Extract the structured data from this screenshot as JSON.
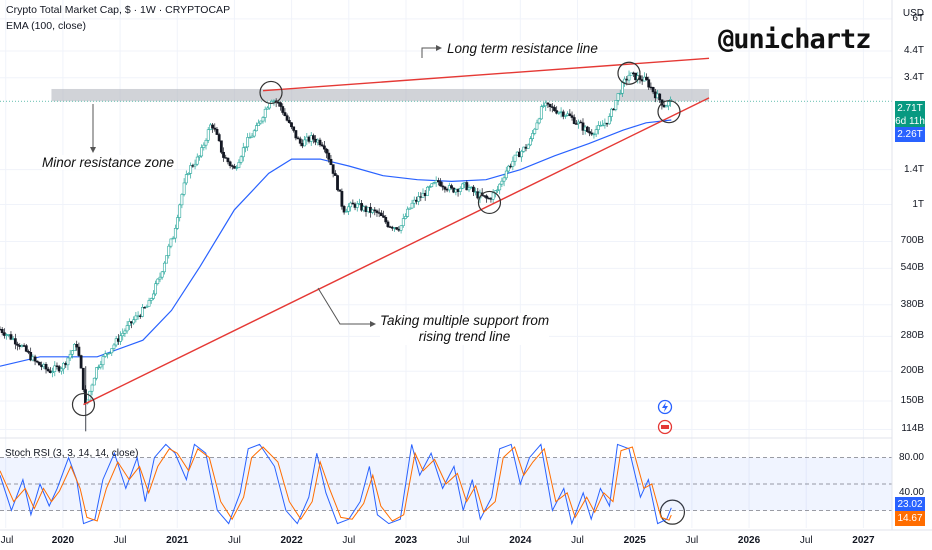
{
  "header": {
    "title": "Crypto Total Market Cap, $ · 1W · CRYPTOCAP",
    "ema_label": "EMA (100, close)",
    "rsi_label": "Stoch RSI (3, 3, 14, 14, close)",
    "currency": "USD",
    "handle": "@unichartz"
  },
  "annotations": {
    "long_term_resistance": "Long term resistance line",
    "minor_resistance": "Minor resistance zone",
    "support_line1": "Taking multiple support from",
    "support_line2": "rising trend line"
  },
  "colors": {
    "up": "#26a69a",
    "down": "#131722",
    "ema": "#2962ff",
    "trendline": "#e53935",
    "rsi_k": "#2962ff",
    "rsi_d": "#ff6d00",
    "badge_price": "#089981",
    "badge_ema": "#2962ff",
    "badge_d": "#ff6d00"
  },
  "badges": {
    "price": "2.71T",
    "countdown": "6d 11h",
    "ema": "2.26T",
    "rsi_k": "23.02",
    "rsi_d": "14.67"
  },
  "chart_data": {
    "type": "candlestick",
    "title": "Crypto Total Market Cap, $ · 1W · CRYPTOCAP",
    "scale": "log",
    "y_ticks": [
      "6T",
      "4.4T",
      "3.4T",
      "1.4T",
      "1T",
      "700B",
      "540B",
      "380B",
      "280B",
      "200B",
      "150B",
      "114B"
    ],
    "y_tick_values": [
      6.0,
      4.4,
      3.4,
      1.4,
      1.0,
      0.7,
      0.54,
      0.38,
      0.28,
      0.2,
      0.15,
      0.114
    ],
    "x_ticks": [
      "Jul",
      "2020",
      "Jul",
      "2021",
      "Jul",
      "2022",
      "Jul",
      "2023",
      "Jul",
      "2024",
      "Jul",
      "2025",
      "Jul",
      "2026",
      "Jul",
      "2027"
    ],
    "x_tick_dates": [
      2019.5,
      2020.0,
      2020.5,
      2021.0,
      2021.5,
      2022.0,
      2022.5,
      2023.0,
      2023.5,
      2024.0,
      2024.5,
      2025.0,
      2025.5,
      2026.0,
      2026.5,
      2027.0
    ],
    "x_range": [
      2019.45,
      2027.25
    ],
    "y_range_T": [
      0.105,
      7.2
    ],
    "price_path": [
      [
        2019.45,
        0.3
      ],
      [
        2019.62,
        0.26
      ],
      [
        2019.75,
        0.22
      ],
      [
        2019.88,
        0.2
      ],
      [
        2020.0,
        0.21
      ],
      [
        2020.12,
        0.26
      ],
      [
        2020.2,
        0.14
      ],
      [
        2020.3,
        0.21
      ],
      [
        2020.45,
        0.26
      ],
      [
        2020.6,
        0.32
      ],
      [
        2020.75,
        0.38
      ],
      [
        2020.85,
        0.5
      ],
      [
        2020.97,
        0.75
      ],
      [
        2021.1,
        1.4
      ],
      [
        2021.2,
        1.6
      ],
      [
        2021.3,
        2.2
      ],
      [
        2021.4,
        1.6
      ],
      [
        2021.5,
        1.4
      ],
      [
        2021.6,
        1.8
      ],
      [
        2021.7,
        2.1
      ],
      [
        2021.82,
        2.8
      ],
      [
        2021.9,
        2.6
      ],
      [
        2021.97,
        2.2
      ],
      [
        2022.07,
        1.8
      ],
      [
        2022.18,
        1.9
      ],
      [
        2022.28,
        1.8
      ],
      [
        2022.38,
        1.3
      ],
      [
        2022.45,
        0.95
      ],
      [
        2022.55,
        1.0
      ],
      [
        2022.65,
        0.95
      ],
      [
        2022.75,
        0.92
      ],
      [
        2022.85,
        0.82
      ],
      [
        2022.95,
        0.8
      ],
      [
        2023.05,
        1.0
      ],
      [
        2023.15,
        1.1
      ],
      [
        2023.28,
        1.25
      ],
      [
        2023.4,
        1.15
      ],
      [
        2023.52,
        1.2
      ],
      [
        2023.62,
        1.1
      ],
      [
        2023.72,
        1.05
      ],
      [
        2023.8,
        1.15
      ],
      [
        2023.88,
        1.4
      ],
      [
        2023.97,
        1.6
      ],
      [
        2024.08,
        1.8
      ],
      [
        2024.2,
        2.6
      ],
      [
        2024.3,
        2.5
      ],
      [
        2024.4,
        2.4
      ],
      [
        2024.5,
        2.2
      ],
      [
        2024.6,
        2.0
      ],
      [
        2024.7,
        2.1
      ],
      [
        2024.78,
        2.3
      ],
      [
        2024.87,
        3.0
      ],
      [
        2024.95,
        3.5
      ],
      [
        2025.03,
        3.4
      ],
      [
        2025.1,
        3.3
      ],
      [
        2025.18,
        2.9
      ],
      [
        2025.26,
        2.6
      ],
      [
        2025.32,
        2.71
      ]
    ],
    "ema_path": [
      [
        2019.45,
        0.21
      ],
      [
        2019.8,
        0.23
      ],
      [
        2020.3,
        0.23
      ],
      [
        2020.7,
        0.27
      ],
      [
        2020.95,
        0.36
      ],
      [
        2021.2,
        0.55
      ],
      [
        2021.5,
        0.95
      ],
      [
        2021.8,
        1.35
      ],
      [
        2022.0,
        1.55
      ],
      [
        2022.25,
        1.55
      ],
      [
        2022.5,
        1.45
      ],
      [
        2022.8,
        1.32
      ],
      [
        2023.1,
        1.27
      ],
      [
        2023.4,
        1.25
      ],
      [
        2023.7,
        1.27
      ],
      [
        2024.0,
        1.4
      ],
      [
        2024.3,
        1.6
      ],
      [
        2024.6,
        1.8
      ],
      [
        2024.9,
        2.05
      ],
      [
        2025.1,
        2.2
      ],
      [
        2025.32,
        2.26
      ]
    ],
    "minor_resistance_zone_T": [
      2.71,
      3.05
    ],
    "resistance_line": [
      [
        2021.75,
        3.0
      ],
      [
        2025.65,
        4.1
      ]
    ],
    "support_line": [
      [
        2020.18,
        0.145
      ],
      [
        2025.65,
        2.8
      ]
    ],
    "stoch_rsi": {
      "levels": [
        80,
        50,
        20
      ],
      "k_last": 23.02,
      "d_last": 14.67,
      "k_path": [
        [
          2019.45,
          60
        ],
        [
          2019.55,
          20
        ],
        [
          2019.65,
          55
        ],
        [
          2019.72,
          15
        ],
        [
          2019.8,
          50
        ],
        [
          2019.88,
          25
        ],
        [
          2019.95,
          45
        ],
        [
          2020.05,
          80
        ],
        [
          2020.12,
          55
        ],
        [
          2020.18,
          5
        ],
        [
          2020.28,
          10
        ],
        [
          2020.35,
          55
        ],
        [
          2020.45,
          85
        ],
        [
          2020.55,
          45
        ],
        [
          2020.65,
          80
        ],
        [
          2020.72,
          30
        ],
        [
          2020.8,
          80
        ],
        [
          2020.9,
          95
        ],
        [
          2020.98,
          85
        ],
        [
          2021.08,
          55
        ],
        [
          2021.15,
          95
        ],
        [
          2021.25,
          85
        ],
        [
          2021.35,
          20
        ],
        [
          2021.45,
          5
        ],
        [
          2021.55,
          40
        ],
        [
          2021.62,
          90
        ],
        [
          2021.72,
          95
        ],
        [
          2021.85,
          70
        ],
        [
          2021.95,
          20
        ],
        [
          2022.05,
          5
        ],
        [
          2022.15,
          35
        ],
        [
          2022.22,
          85
        ],
        [
          2022.3,
          40
        ],
        [
          2022.4,
          5
        ],
        [
          2022.5,
          10
        ],
        [
          2022.6,
          30
        ],
        [
          2022.68,
          70
        ],
        [
          2022.75,
          15
        ],
        [
          2022.85,
          5
        ],
        [
          2022.95,
          10
        ],
        [
          2023.05,
          95
        ],
        [
          2023.12,
          60
        ],
        [
          2023.22,
          85
        ],
        [
          2023.32,
          45
        ],
        [
          2023.42,
          70
        ],
        [
          2023.5,
          20
        ],
        [
          2023.58,
          55
        ],
        [
          2023.65,
          10
        ],
        [
          2023.75,
          35
        ],
        [
          2023.82,
          90
        ],
        [
          2023.92,
          95
        ],
        [
          2024.0,
          50
        ],
        [
          2024.08,
          80
        ],
        [
          2024.18,
          95
        ],
        [
          2024.28,
          20
        ],
        [
          2024.38,
          45
        ],
        [
          2024.45,
          5
        ],
        [
          2024.55,
          40
        ],
        [
          2024.62,
          10
        ],
        [
          2024.7,
          45
        ],
        [
          2024.78,
          25
        ],
        [
          2024.85,
          95
        ],
        [
          2024.95,
          90
        ],
        [
          2025.05,
          35
        ],
        [
          2025.12,
          55
        ],
        [
          2025.2,
          5
        ],
        [
          2025.28,
          10
        ],
        [
          2025.32,
          23
        ]
      ],
      "d_path": [
        [
          2019.45,
          65
        ],
        [
          2019.57,
          30
        ],
        [
          2019.67,
          45
        ],
        [
          2019.75,
          22
        ],
        [
          2019.83,
          45
        ],
        [
          2019.9,
          30
        ],
        [
          2019.97,
          42
        ],
        [
          2020.07,
          70
        ],
        [
          2020.15,
          45
        ],
        [
          2020.21,
          12
        ],
        [
          2020.3,
          8
        ],
        [
          2020.38,
          45
        ],
        [
          2020.48,
          75
        ],
        [
          2020.58,
          55
        ],
        [
          2020.67,
          70
        ],
        [
          2020.75,
          40
        ],
        [
          2020.83,
          70
        ],
        [
          2020.93,
          90
        ],
        [
          2021.0,
          85
        ],
        [
          2021.1,
          65
        ],
        [
          2021.18,
          90
        ],
        [
          2021.28,
          80
        ],
        [
          2021.38,
          30
        ],
        [
          2021.48,
          10
        ],
        [
          2021.58,
          35
        ],
        [
          2021.65,
          80
        ],
        [
          2021.75,
          92
        ],
        [
          2021.88,
          75
        ],
        [
          2021.98,
          30
        ],
        [
          2022.08,
          10
        ],
        [
          2022.18,
          30
        ],
        [
          2022.25,
          75
        ],
        [
          2022.33,
          45
        ],
        [
          2022.43,
          12
        ],
        [
          2022.53,
          10
        ],
        [
          2022.63,
          28
        ],
        [
          2022.71,
          60
        ],
        [
          2022.78,
          25
        ],
        [
          2022.88,
          8
        ],
        [
          2022.98,
          15
        ],
        [
          2023.08,
          85
        ],
        [
          2023.15,
          65
        ],
        [
          2023.25,
          78
        ],
        [
          2023.35,
          50
        ],
        [
          2023.45,
          62
        ],
        [
          2023.53,
          30
        ],
        [
          2023.61,
          48
        ],
        [
          2023.68,
          18
        ],
        [
          2023.78,
          30
        ],
        [
          2023.85,
          80
        ],
        [
          2023.95,
          92
        ],
        [
          2024.03,
          60
        ],
        [
          2024.11,
          75
        ],
        [
          2024.21,
          90
        ],
        [
          2024.31,
          30
        ],
        [
          2024.41,
          40
        ],
        [
          2024.48,
          12
        ],
        [
          2024.58,
          35
        ],
        [
          2024.65,
          18
        ],
        [
          2024.73,
          40
        ],
        [
          2024.81,
          30
        ],
        [
          2024.88,
          88
        ],
        [
          2024.98,
          92
        ],
        [
          2025.08,
          45
        ],
        [
          2025.15,
          50
        ],
        [
          2025.23,
          12
        ],
        [
          2025.3,
          9
        ],
        [
          2025.32,
          14.67
        ]
      ]
    }
  }
}
